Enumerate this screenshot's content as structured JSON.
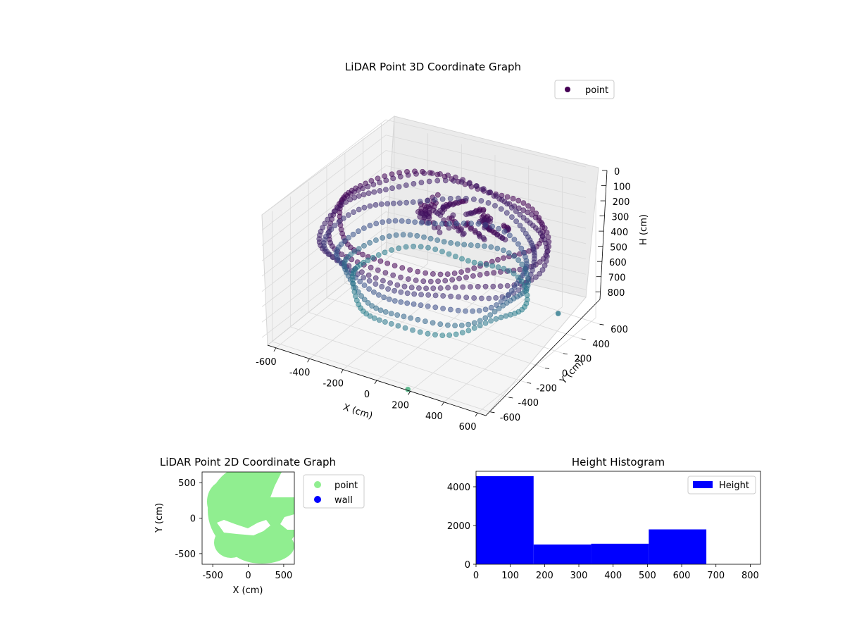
{
  "chart_data": [
    {
      "type": "scatter",
      "title": "LiDAR Point 3D Coordinate Graph",
      "xlabel": "X (cm)",
      "ylabel": "Y (cm)",
      "zlabel": "H (cm)",
      "xlim": [
        -650,
        650
      ],
      "ylim": [
        -650,
        650
      ],
      "zlim": [
        850,
        0
      ],
      "x_ticks": [
        "-600",
        "-400",
        "-200",
        "0",
        "200",
        "400",
        "600"
      ],
      "y_ticks": [
        "-600",
        "-400",
        "-200",
        "0",
        "200",
        "400",
        "600"
      ],
      "z_ticks": [
        "0",
        "100",
        "200",
        "300",
        "400",
        "500",
        "600",
        "700",
        "800"
      ],
      "z_tick_values": [
        0,
        100,
        200,
        300,
        400,
        500,
        600,
        700,
        800
      ],
      "legend": {
        "label": "point",
        "color": "#440154",
        "placement": "top-right"
      },
      "colormap": "viridis",
      "grid": true,
      "rings": [
        {
          "h": 160,
          "r": 560,
          "count": 86
        },
        {
          "h": 200,
          "r": 600,
          "count": 90
        },
        {
          "h": 250,
          "r": 620,
          "count": 92
        },
        {
          "h": 320,
          "r": 580,
          "count": 88
        },
        {
          "h": 420,
          "r": 520,
          "count": 82
        },
        {
          "h": 520,
          "r": 500,
          "count": 80
        },
        {
          "h": 600,
          "r": 480,
          "count": 76
        }
      ],
      "outliers": [
        {
          "x": 180,
          "y": -640,
          "h": 850
        },
        {
          "x": 620,
          "y": 200,
          "h": 600
        }
      ]
    },
    {
      "type": "scatter",
      "title": "LiDAR Point 2D Coordinate Graph",
      "xlabel": "X (cm)",
      "ylabel": "Y (cm)",
      "xlim": [
        -650,
        650
      ],
      "ylim": [
        -650,
        650
      ],
      "x_ticks": [
        "-500",
        "0",
        "500"
      ],
      "x_tick_values": [
        -500,
        0,
        500
      ],
      "y_ticks": [
        "-500",
        "0",
        "500"
      ],
      "y_tick_values": [
        -500,
        0,
        500
      ],
      "series": [
        {
          "name": "point",
          "color": "#90ee90"
        },
        {
          "name": "wall",
          "color": "#0000ff"
        }
      ],
      "legend_placement": "outside-right"
    },
    {
      "type": "bar",
      "title": "Height Histogram",
      "xlim": [
        0,
        830
      ],
      "ylim": [
        0,
        4800
      ],
      "x_ticks": [
        "0",
        "100",
        "200",
        "300",
        "400",
        "500",
        "600",
        "700",
        "800"
      ],
      "x_tick_values": [
        0,
        100,
        200,
        300,
        400,
        500,
        600,
        700,
        800
      ],
      "y_ticks": [
        "0",
        "2000",
        "4000"
      ],
      "y_tick_values": [
        0,
        2000,
        4000
      ],
      "bins": [
        {
          "from": 0,
          "to": 168,
          "count": 4550
        },
        {
          "from": 168,
          "to": 336,
          "count": 1020
        },
        {
          "from": 336,
          "to": 504,
          "count": 1060
        },
        {
          "from": 504,
          "to": 672,
          "count": 1800
        },
        {
          "from": 672,
          "to": 840,
          "count": 0
        }
      ],
      "color": "#0000ff",
      "legend": {
        "label": "Height",
        "placement": "top-right"
      }
    }
  ]
}
